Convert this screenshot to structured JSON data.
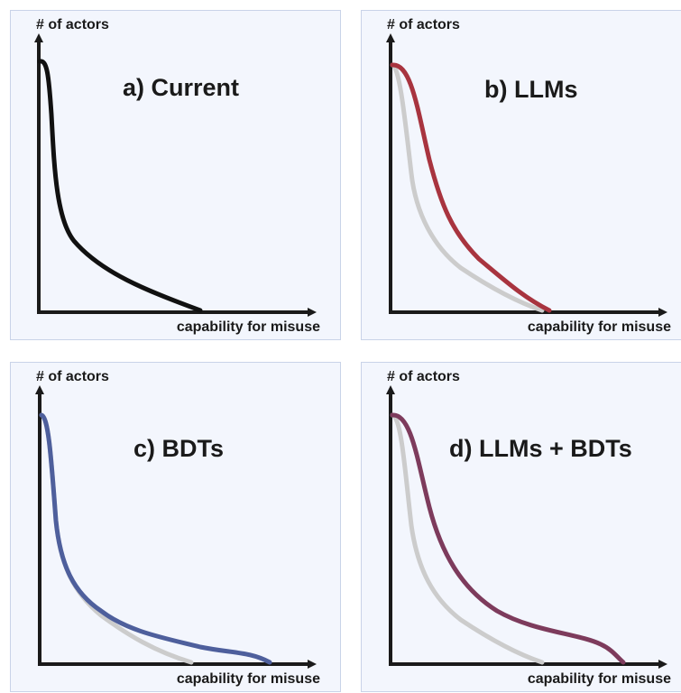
{
  "panels": [
    {
      "id": "a",
      "title": "a) Current",
      "y_axis_label": "# of actors",
      "x_axis_label": "capability for misuse",
      "curves": [
        {
          "color": "#111111",
          "role": "baseline"
        }
      ]
    },
    {
      "id": "b",
      "title": "b) LLMs",
      "y_axis_label": "# of actors",
      "x_axis_label": "capability for misuse",
      "curves": [
        {
          "color": "#cccccc",
          "role": "baseline"
        },
        {
          "color": "#a8343f",
          "role": "shifted"
        }
      ]
    },
    {
      "id": "c",
      "title": "c) BDTs",
      "y_axis_label": "# of actors",
      "x_axis_label": "capability for misuse",
      "curves": [
        {
          "color": "#cccccc",
          "role": "baseline"
        },
        {
          "color": "#4e5f9c",
          "role": "shifted"
        }
      ]
    },
    {
      "id": "d",
      "title": "d) LLMs + BDTs",
      "y_axis_label": "# of actors",
      "x_axis_label": "capability for misuse",
      "curves": [
        {
          "color": "#cccccc",
          "role": "baseline"
        },
        {
          "color": "#7d3b5c",
          "role": "shifted"
        }
      ]
    }
  ]
}
